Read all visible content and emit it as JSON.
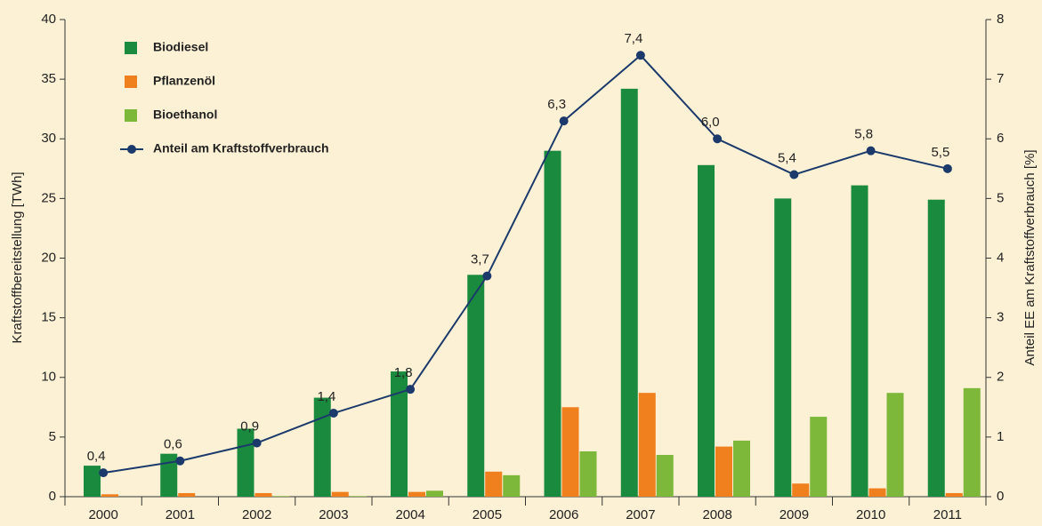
{
  "chart_data": {
    "type": "bar",
    "y_label": "Kraftstoffbereitstellung [TWh]",
    "y2_label": "Anteil EE am Kraftstoffverbrauch [%]",
    "categories": [
      "2000",
      "2001",
      "2002",
      "2003",
      "2004",
      "2005",
      "2006",
      "2007",
      "2008",
      "2009",
      "2010",
      "2011"
    ],
    "ylim": [
      0,
      40
    ],
    "yticks": [
      0,
      5,
      10,
      15,
      20,
      25,
      30,
      35,
      40
    ],
    "y2lim": [
      0,
      8
    ],
    "y2ticks": [
      0,
      1,
      2,
      3,
      4,
      5,
      6,
      7,
      8
    ],
    "legend": "upper left",
    "series": [
      {
        "name": "Biodiesel",
        "color": "#1a8a3e",
        "values": [
          2.6,
          3.6,
          5.7,
          8.3,
          10.5,
          18.6,
          29.0,
          34.2,
          27.8,
          25.0,
          26.1,
          24.9
        ]
      },
      {
        "name": "Pflanzenöl",
        "color": "#f07f1e",
        "values": [
          0.2,
          0.3,
          0.3,
          0.4,
          0.4,
          2.1,
          7.5,
          8.7,
          4.2,
          1.1,
          0.7,
          0.3
        ]
      },
      {
        "name": "Bioethanol",
        "color": "#7db83a",
        "values": [
          0,
          0,
          0.05,
          0.05,
          0.5,
          1.8,
          3.8,
          3.5,
          4.7,
          6.7,
          8.7,
          9.1
        ]
      },
      {
        "name": "Anteil am Kraftstoffverbrauch",
        "color": "#1b3a6b",
        "type": "line",
        "axis": "y2",
        "values": [
          0.4,
          0.6,
          0.9,
          1.4,
          1.8,
          3.7,
          6.3,
          7.4,
          6.0,
          5.4,
          5.8,
          5.5
        ],
        "value_labels": [
          "0,4",
          "0,6",
          "0,9",
          "1,4",
          "1,8",
          "3,7",
          "6,3",
          "7,4",
          "6,0",
          "5,4",
          "5,8",
          "5,5"
        ]
      }
    ]
  }
}
